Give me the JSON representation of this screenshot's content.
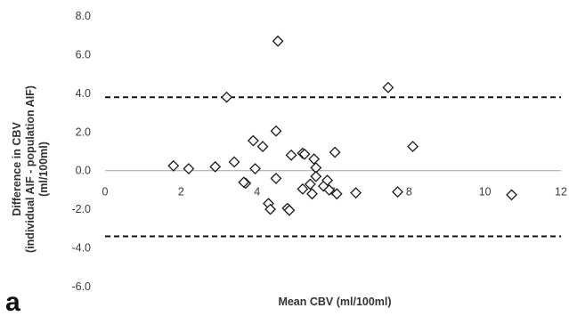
{
  "panel_label": "a",
  "chart_data": {
    "type": "scatter",
    "title": "",
    "xlabel": "Mean CBV (ml/100ml)",
    "ylabel_lines": [
      "Difference in CBV",
      "(individual AIF - population AIF)",
      "(ml/100ml)"
    ],
    "xlim": [
      0,
      12
    ],
    "ylim": [
      -6,
      8
    ],
    "x_ticks": [
      0,
      2,
      4,
      6,
      8,
      10,
      12
    ],
    "x_tick_labels": [
      "0",
      "2",
      "4",
      "6",
      "8",
      "10",
      "12"
    ],
    "y_ticks": [
      -6,
      -4,
      -2,
      0,
      2,
      4,
      6,
      8
    ],
    "y_tick_labels": [
      "-6.0",
      "-4.0",
      "-2.0",
      "0.0",
      "2.0",
      "4.0",
      "6.0",
      "8.0"
    ],
    "grid": false,
    "legend": "none",
    "marker": "diamond-open",
    "marker_color": "#1a1a1a",
    "reference_lines": [
      3.8,
      -3.4
    ],
    "reference_line_style": "dashed",
    "points": [
      {
        "x": 1.8,
        "y": 0.25
      },
      {
        "x": 2.2,
        "y": 0.1
      },
      {
        "x": 2.9,
        "y": 0.2
      },
      {
        "x": 3.2,
        "y": 3.8
      },
      {
        "x": 3.4,
        "y": 0.45
      },
      {
        "x": 3.7,
        "y": -0.65
      },
      {
        "x": 3.65,
        "y": -0.6
      },
      {
        "x": 3.9,
        "y": 1.55
      },
      {
        "x": 3.95,
        "y": 0.1
      },
      {
        "x": 4.15,
        "y": 1.25
      },
      {
        "x": 4.3,
        "y": -1.7
      },
      {
        "x": 4.35,
        "y": -2.0
      },
      {
        "x": 4.5,
        "y": 2.05
      },
      {
        "x": 4.5,
        "y": -0.4
      },
      {
        "x": 4.55,
        "y": 6.7
      },
      {
        "x": 4.8,
        "y": -1.95
      },
      {
        "x": 4.85,
        "y": -2.05
      },
      {
        "x": 4.9,
        "y": 0.8
      },
      {
        "x": 5.2,
        "y": 0.9
      },
      {
        "x": 5.25,
        "y": 0.85
      },
      {
        "x": 5.2,
        "y": -0.95
      },
      {
        "x": 5.4,
        "y": -0.7
      },
      {
        "x": 5.45,
        "y": -1.2
      },
      {
        "x": 5.5,
        "y": 0.6
      },
      {
        "x": 5.55,
        "y": 0.15
      },
      {
        "x": 5.55,
        "y": -0.3
      },
      {
        "x": 5.75,
        "y": -0.8
      },
      {
        "x": 5.85,
        "y": -0.5
      },
      {
        "x": 5.9,
        "y": -1.0
      },
      {
        "x": 6.05,
        "y": 0.95
      },
      {
        "x": 6.1,
        "y": -1.2
      },
      {
        "x": 6.6,
        "y": -1.15
      },
      {
        "x": 7.45,
        "y": 4.3
      },
      {
        "x": 7.7,
        "y": -1.1
      },
      {
        "x": 8.1,
        "y": 1.25
      },
      {
        "x": 10.7,
        "y": -1.25
      }
    ]
  }
}
